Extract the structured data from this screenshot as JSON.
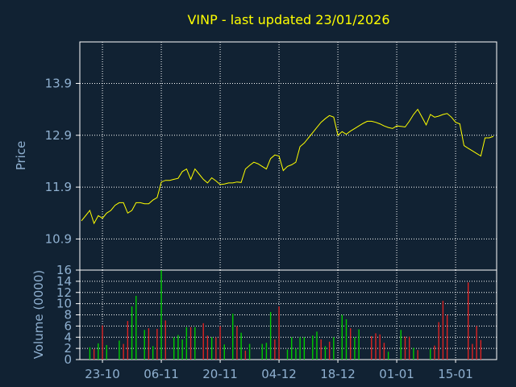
{
  "chart_data": [
    {
      "type": "line",
      "title": "VINP - last updated 23/01/2026",
      "ylabel": "Price",
      "ylim": [
        10.3,
        14.7
      ],
      "yticks": [
        "10.9",
        "11.9",
        "12.9",
        "13.9"
      ],
      "xticks": [
        "23-10",
        "06-11",
        "20-11",
        "04-12",
        "18-12",
        "01-01",
        "15-01"
      ],
      "grid": true,
      "line_color": "#ffff00",
      "values": [
        11.25,
        11.35,
        11.45,
        11.2,
        11.35,
        11.3,
        11.4,
        11.45,
        11.55,
        11.6,
        11.6,
        11.4,
        11.45,
        11.6,
        11.6,
        11.58,
        11.58,
        11.65,
        11.7,
        12.0,
        12.03,
        12.03,
        12.05,
        12.07,
        12.2,
        12.25,
        12.05,
        12.25,
        12.15,
        12.05,
        11.98,
        12.08,
        12.02,
        11.95,
        11.96,
        11.98,
        11.98,
        12.0,
        11.99,
        12.25,
        12.32,
        12.38,
        12.35,
        12.3,
        12.25,
        12.45,
        12.52,
        12.5,
        12.22,
        12.3,
        12.33,
        12.38,
        12.68,
        12.75,
        12.85,
        12.95,
        13.05,
        13.15,
        13.22,
        13.28,
        13.25,
        12.9,
        12.97,
        12.92,
        12.98,
        13.03,
        13.08,
        13.13,
        13.17,
        13.17,
        13.15,
        13.12,
        13.08,
        13.05,
        13.03,
        13.08,
        13.07,
        13.06,
        13.17,
        13.3,
        13.4,
        13.25,
        13.1,
        13.3,
        13.25,
        13.27,
        13.3,
        13.32,
        13.25,
        13.15,
        13.12,
        12.7,
        12.65,
        12.6,
        12.55,
        12.5,
        12.85,
        12.85,
        12.88
      ]
    },
    {
      "type": "bar",
      "ylabel": "Volume (0000)",
      "ylim": [
        0,
        16
      ],
      "yticks": [
        "0",
        "2",
        "4",
        "6",
        "8",
        "10",
        "12",
        "14",
        "16"
      ],
      "up_color": "#00cc00",
      "down_color": "#dd2222",
      "volumes": [
        {
          "i": 2,
          "v": 2.2,
          "up": true
        },
        {
          "i": 3,
          "v": 1.9,
          "up": false
        },
        {
          "i": 4,
          "v": 2.9,
          "up": true
        },
        {
          "i": 5,
          "v": 6.1,
          "up": false
        },
        {
          "i": 6,
          "v": 2.6,
          "up": true
        },
        {
          "i": 9,
          "v": 3.4,
          "up": true
        },
        {
          "i": 10,
          "v": 2.8,
          "up": false
        },
        {
          "i": 11,
          "v": 6.9,
          "up": false
        },
        {
          "i": 12,
          "v": 9.5,
          "up": true
        },
        {
          "i": 13,
          "v": 11.4,
          "up": true
        },
        {
          "i": 15,
          "v": 5.3,
          "up": true
        },
        {
          "i": 16,
          "v": 5.6,
          "up": false
        },
        {
          "i": 17,
          "v": 2.4,
          "up": true
        },
        {
          "i": 18,
          "v": 5.5,
          "up": false
        },
        {
          "i": 19,
          "v": 16.0,
          "up": true
        },
        {
          "i": 20,
          "v": 7.0,
          "up": false
        },
        {
          "i": 22,
          "v": 4.0,
          "up": true
        },
        {
          "i": 23,
          "v": 4.4,
          "up": true
        },
        {
          "i": 24,
          "v": 3.6,
          "up": true
        },
        {
          "i": 25,
          "v": 5.8,
          "up": true
        },
        {
          "i": 26,
          "v": 5.8,
          "up": false
        },
        {
          "i": 27,
          "v": 5.8,
          "up": true
        },
        {
          "i": 29,
          "v": 6.5,
          "up": false
        },
        {
          "i": 30,
          "v": 4.3,
          "up": false
        },
        {
          "i": 31,
          "v": 4.0,
          "up": true
        },
        {
          "i": 32,
          "v": 4.0,
          "up": false
        },
        {
          "i": 33,
          "v": 6.0,
          "up": false
        },
        {
          "i": 34,
          "v": 2.7,
          "up": true
        },
        {
          "i": 36,
          "v": 8.2,
          "up": true
        },
        {
          "i": 37,
          "v": 6.0,
          "up": false
        },
        {
          "i": 38,
          "v": 4.8,
          "up": true
        },
        {
          "i": 39,
          "v": 1.6,
          "up": false
        },
        {
          "i": 40,
          "v": 2.8,
          "up": true
        },
        {
          "i": 43,
          "v": 2.8,
          "up": true
        },
        {
          "i": 44,
          "v": 3.0,
          "up": true
        },
        {
          "i": 45,
          "v": 8.5,
          "up": true
        },
        {
          "i": 46,
          "v": 3.6,
          "up": false
        },
        {
          "i": 47,
          "v": 9.5,
          "up": false
        },
        {
          "i": 49,
          "v": 1.8,
          "up": true
        },
        {
          "i": 50,
          "v": 4.0,
          "up": true
        },
        {
          "i": 51,
          "v": 2.0,
          "up": true
        },
        {
          "i": 52,
          "v": 4.0,
          "up": true
        },
        {
          "i": 53,
          "v": 4.0,
          "up": true
        },
        {
          "i": 55,
          "v": 4.3,
          "up": true
        },
        {
          "i": 56,
          "v": 5.0,
          "up": true
        },
        {
          "i": 57,
          "v": 3.6,
          "up": false
        },
        {
          "i": 58,
          "v": 2.4,
          "up": true
        },
        {
          "i": 59,
          "v": 3.2,
          "up": false
        },
        {
          "i": 60,
          "v": 4.0,
          "up": true
        },
        {
          "i": 62,
          "v": 8.0,
          "up": true
        },
        {
          "i": 63,
          "v": 7.2,
          "up": true
        },
        {
          "i": 64,
          "v": 5.6,
          "up": false
        },
        {
          "i": 65,
          "v": 4.0,
          "up": true
        },
        {
          "i": 66,
          "v": 5.4,
          "up": true
        },
        {
          "i": 69,
          "v": 4.2,
          "up": false
        },
        {
          "i": 70,
          "v": 4.7,
          "up": false
        },
        {
          "i": 71,
          "v": 4.5,
          "up": false
        },
        {
          "i": 72,
          "v": 3.0,
          "up": false
        },
        {
          "i": 73,
          "v": 1.4,
          "up": true
        },
        {
          "i": 76,
          "v": 5.3,
          "up": true
        },
        {
          "i": 77,
          "v": 4.1,
          "up": false
        },
        {
          "i": 78,
          "v": 4.1,
          "up": false
        },
        {
          "i": 79,
          "v": 2.1,
          "up": true
        },
        {
          "i": 80,
          "v": 1.7,
          "up": false
        },
        {
          "i": 83,
          "v": 1.9,
          "up": true
        },
        {
          "i": 84,
          "v": 2.5,
          "up": false
        },
        {
          "i": 85,
          "v": 6.7,
          "up": false
        },
        {
          "i": 86,
          "v": 10.5,
          "up": false
        },
        {
          "i": 87,
          "v": 8.0,
          "up": false
        },
        {
          "i": 92,
          "v": 13.8,
          "up": false
        },
        {
          "i": 93,
          "v": 2.8,
          "up": false
        },
        {
          "i": 94,
          "v": 6.0,
          "up": false
        },
        {
          "i": 95,
          "v": 3.5,
          "up": false
        }
      ]
    }
  ]
}
